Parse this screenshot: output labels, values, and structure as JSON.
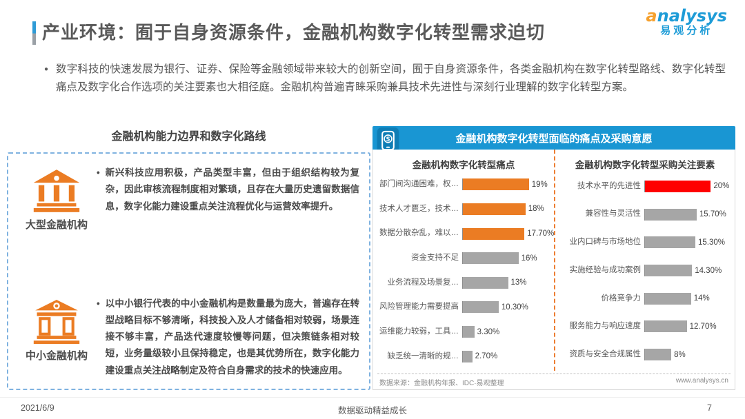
{
  "page": {
    "title": "产业环境：囿于自身资源条件，金融机构数字化转型需求迫切",
    "bullet": "●",
    "intro": "数字科技的快速发展为银行、证券、保险等金融领域带来较大的创新空间，囿于自身资源条件，各类金融机构在数字化转型路线、数字化转型痛点及数字化合作选项的关注要素也大相径庭。金融机构普遍青睐采购兼具技术先进性与深刻行业理解的数字化转型方案。"
  },
  "logo": {
    "brand": "analysys",
    "brand_cn": "易观分析"
  },
  "left_panel": {
    "header": "金融机构能力边界和数字化路线",
    "item_bullet": "•",
    "items": [
      {
        "icon": "bank-large-icon",
        "label": "大型金融机构",
        "text": "新兴科技应用积极，产品类型丰富，但由于组织结构较为复杂，因此审核流程制度相对繁琐，且存在大量历史遗留数据信息，数字化能力建设重点关注流程优化与运营效率提升。"
      },
      {
        "icon": "bank-small-icon",
        "label": "中小金融机构",
        "text": "以中小银行代表的中小金融机构是数量最为庞大，普遍存在转型战略目标不够清晰，科技投入及人才储备相对较弱，场景连接不够丰富，产品迭代速度较慢等问题，但决策链条相对较短，业务量级较小且保持稳定，也是其优势所在，数字化能力建设重点关注战略制定及符合自身需求的技术的快速应用。"
      }
    ]
  },
  "right_panel": {
    "banner": "金融机构数字化转型面临的痛点及采购意愿",
    "banner_icon": "mobile-payment-icon",
    "source": "数据来源：金融机构年报、IDC·易观整理",
    "website": "www.analysys.cn"
  },
  "colors": {
    "banner_blue": "#1996D3",
    "accent_blue": "#2E9BD6",
    "orange": "#EB7C23",
    "red": "#FF0000",
    "gray_bar": "#A6A6A6"
  },
  "chart_data": [
    {
      "type": "bar",
      "orientation": "horizontal",
      "title": "金融机构数字化转型痛点",
      "categories": [
        "部门间沟通困难，权…",
        "技术人才匮乏，技术…",
        "数据分散杂乱，难以…",
        "资金支持不足",
        "业务流程及场景复…",
        "风险管理能力需要提高",
        "运维能力较弱，工具…",
        "缺乏统一清晰的规…"
      ],
      "values": [
        19,
        18,
        17.7,
        16,
        13,
        10.3,
        3.3,
        2.7
      ],
      "value_labels": [
        "19%",
        "18%",
        "17.70%",
        "16%",
        "13%",
        "10.30%",
        "3.30%",
        "2.70%"
      ],
      "bar_colors": [
        "#EB7C23",
        "#EB7C23",
        "#EB7C23",
        "#A6A6A6",
        "#A6A6A6",
        "#A6A6A6",
        "#A6A6A6",
        "#A6A6A6"
      ],
      "xlabel": "",
      "ylabel": "",
      "xlim": [
        0,
        25
      ],
      "grid": false,
      "legend": false,
      "value_label_position": "end"
    },
    {
      "type": "bar",
      "orientation": "horizontal",
      "title": "金融机构数字化转型采购关注要素",
      "categories": [
        "技术水平的先进性",
        "兼容性与灵活性",
        "业内口碑与市场地位",
        "实施经验与成功案例",
        "价格竞争力",
        "服务能力与响应速度",
        "资质与安全合规属性"
      ],
      "values": [
        20,
        15.7,
        15.3,
        14.3,
        14,
        12.7,
        8
      ],
      "value_labels": [
        "20%",
        "15.70%",
        "15.30%",
        "14.30%",
        "14%",
        "12.70%",
        "8%"
      ],
      "bar_colors": [
        "#FF0000",
        "#A6A6A6",
        "#A6A6A6",
        "#A6A6A6",
        "#A6A6A6",
        "#A6A6A6",
        "#A6A6A6"
      ],
      "xlabel": "",
      "ylabel": "",
      "xlim": [
        0,
        26
      ],
      "grid": false,
      "legend": false,
      "value_label_position": "end"
    }
  ],
  "footer": {
    "date": "2021/6/9",
    "slogan": "数据驱动精益成长",
    "page_number": "7"
  }
}
